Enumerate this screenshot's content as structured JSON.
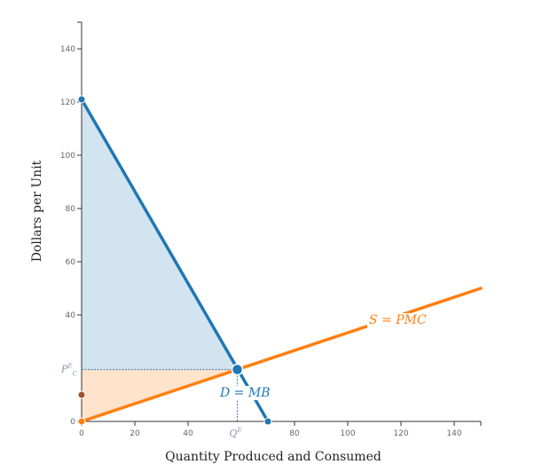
{
  "chart_data": {
    "type": "line",
    "title": "",
    "xlabel": "Quantity Produced and Consumed",
    "ylabel": "Dollars per Unit",
    "xlim": [
      0,
      150
    ],
    "ylim": [
      0,
      150
    ],
    "x_ticks": [
      0,
      20,
      40,
      80,
      100,
      120,
      140
    ],
    "y_ticks": [
      0,
      40,
      60,
      80,
      100,
      120,
      140
    ],
    "series": [
      {
        "name": "D = MB",
        "color": "#1f77b4",
        "x": [
          0,
          70
        ],
        "y": [
          121,
          0
        ]
      },
      {
        "name": "S = PMC",
        "color": "#ff7f0e",
        "x": [
          0,
          150
        ],
        "y": [
          0,
          50
        ]
      }
    ],
    "equilibrium": {
      "q": 58.5,
      "p": 19.5,
      "q_label": "Q",
      "q_sup": "E",
      "p_label": "P",
      "p_sub": "C",
      "p_sup": "E"
    },
    "consumer_surplus": {
      "color": "#1f77b4"
    },
    "producer_surplus": {
      "color": "#ff7f0e"
    },
    "points": [
      {
        "name": "demand-intercept",
        "x": 0,
        "y": 121,
        "color": "#1f77b4"
      },
      {
        "name": "demand-q-intercept",
        "x": 70,
        "y": 0,
        "color": "#1f77b4"
      },
      {
        "name": "origin",
        "x": 0,
        "y": 0,
        "color": "#ff7f0e"
      },
      {
        "name": "price-marker",
        "x": 0,
        "y": 10,
        "color": "#a0522d"
      }
    ]
  }
}
